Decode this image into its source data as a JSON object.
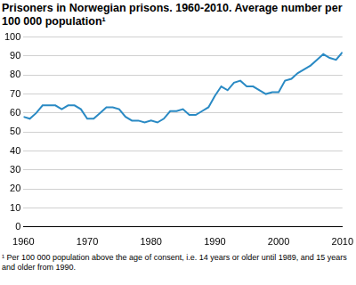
{
  "chart_data": {
    "type": "line",
    "title": "Prisoners in Norwegian prisons. 1960-2010. Average number per 100 000 population¹",
    "footnote": "¹ Per 100 000 population above the age of consent, i.e. 14 years or older until 1989, and 15 years and older from 1990.",
    "x": [
      1960,
      1961,
      1962,
      1963,
      1964,
      1965,
      1966,
      1967,
      1968,
      1969,
      1970,
      1971,
      1972,
      1973,
      1974,
      1975,
      1976,
      1977,
      1978,
      1979,
      1980,
      1981,
      1982,
      1983,
      1984,
      1985,
      1986,
      1987,
      1988,
      1989,
      1990,
      1991,
      1992,
      1993,
      1994,
      1995,
      1996,
      1997,
      1998,
      1999,
      2000,
      2001,
      2002,
      2003,
      2004,
      2005,
      2006,
      2007,
      2008,
      2009,
      2010
    ],
    "values": [
      58,
      57,
      60,
      64,
      64,
      64,
      62,
      64,
      64,
      62,
      57,
      57,
      60,
      63,
      63,
      62,
      58,
      56,
      56,
      55,
      56,
      55,
      57,
      61,
      61,
      62,
      59,
      59,
      61,
      63,
      69,
      74,
      72,
      76,
      77,
      74,
      74,
      72,
      70,
      71,
      71,
      77,
      78,
      81,
      83,
      85,
      88,
      91,
      89,
      88,
      92
    ],
    "color": "#2a8ac4",
    "xlim": [
      1960,
      2010
    ],
    "xticks": [
      1960,
      1970,
      1980,
      1990,
      2000,
      2010
    ],
    "ylim": [
      0,
      100
    ],
    "yticks": [
      0,
      10,
      20,
      30,
      40,
      50,
      60,
      70,
      80,
      90,
      100
    ],
    "grid": true
  }
}
